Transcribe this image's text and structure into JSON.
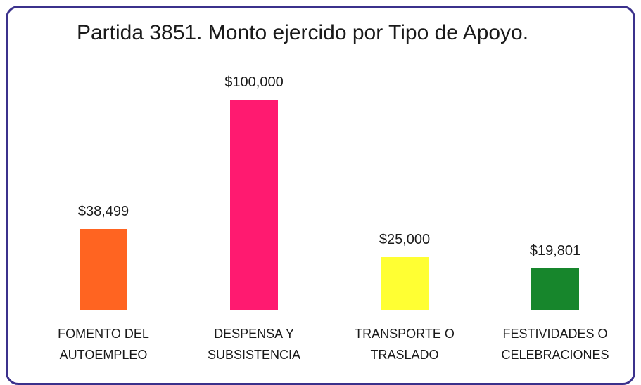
{
  "chart_data": {
    "type": "bar",
    "title": "Partida 3851. Monto ejercido por Tipo de Apoyo.",
    "categories": [
      "FOMENTO DEL AUTOEMPLEO",
      "DESPENSA Y SUBSISTENCIA",
      "TRANSPORTE O TRASLADO",
      "FESTIVIDADES O CELEBRACIONES"
    ],
    "values": [
      38499,
      100000,
      25000,
      19801
    ],
    "value_labels": [
      "$38,499",
      "$100,000",
      "$25,000",
      "$19,801"
    ],
    "colors": [
      "#ff6421",
      "#ff1a70",
      "#ffff33",
      "#17862c"
    ]
  }
}
